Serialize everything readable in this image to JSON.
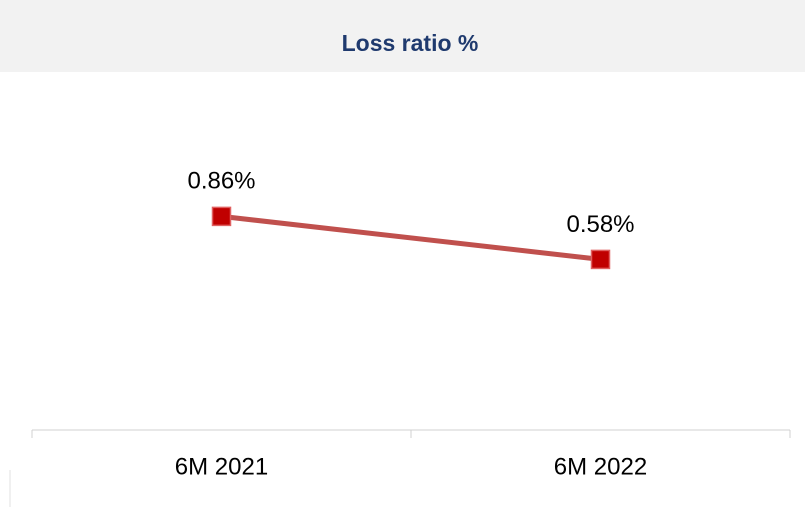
{
  "chart_data": {
    "type": "line",
    "title": "Loss ratio %",
    "categories": [
      "6M 2021",
      "6M 2022"
    ],
    "series": [
      {
        "color": "#c0504d",
        "marker_color": "#c00000",
        "values": [
          0.86,
          0.58
        ],
        "value_labels": [
          "0.86%",
          "0.58%"
        ]
      }
    ],
    "ylim": [
      -0.53,
      1.78
    ],
    "grid": false
  }
}
